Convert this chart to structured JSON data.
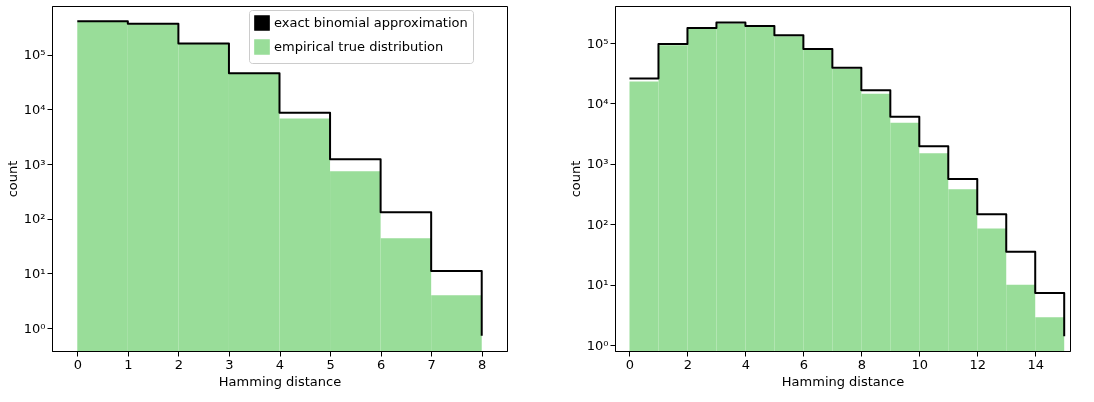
{
  "chart_data": [
    {
      "type": "histogram",
      "xlabel": "Hamming distance",
      "ylabel": "count",
      "log": "y",
      "legend": "top right",
      "grid": false,
      "bins": [
        0,
        1,
        2,
        3,
        4,
        5,
        6,
        7,
        8
      ],
      "xlim": [
        -0.5,
        8.5
      ],
      "xticks": [
        0,
        1,
        2,
        3,
        4,
        5,
        6,
        7,
        8
      ],
      "ylim": [
        0.38,
        780000
      ],
      "yticks": [
        {
          "value": 1,
          "label": "10⁰"
        },
        {
          "value": 10,
          "label": "10¹"
        },
        {
          "value": 100,
          "label": "10²"
        },
        {
          "value": 1000,
          "label": "10³"
        },
        {
          "value": 10000,
          "label": "10⁴"
        },
        {
          "value": 100000,
          "label": "10⁵"
        }
      ],
      "series": [
        {
          "name": "exact binomial approximation",
          "type": "step",
          "color": "#000000",
          "x": [
            0,
            1,
            2,
            3,
            4,
            5,
            6,
            7,
            8
          ],
          "values": [
            410000,
            370000,
            160000,
            46000,
            8700,
            1230,
            132,
            11.1,
            0.72
          ]
        },
        {
          "name": "empirical true distribution",
          "type": "histogram",
          "color": "#99dd99",
          "values": [
            400000,
            360000,
            160000,
            45000,
            6800,
            740,
            44,
            4.0
          ]
        }
      ]
    },
    {
      "type": "histogram",
      "xlabel": "Hamming distance",
      "ylabel": "count",
      "log": "y",
      "grid": false,
      "bins": [
        0,
        1,
        2,
        3,
        4,
        5,
        6,
        7,
        8,
        9,
        10,
        11,
        12,
        13,
        14,
        15
      ],
      "xlim": [
        -0.5,
        15.2
      ],
      "xticks": [
        0,
        2,
        4,
        6,
        8,
        10,
        12,
        14
      ],
      "ylim": [
        0.8,
        410000
      ],
      "yticks": [
        {
          "value": 1,
          "label": "10⁰"
        },
        {
          "value": 10,
          "label": "10¹"
        },
        {
          "value": 100,
          "label": "10²"
        },
        {
          "value": 1000,
          "label": "10³"
        },
        {
          "value": 10000,
          "label": "10⁴"
        },
        {
          "value": 100000,
          "label": "10⁵"
        }
      ],
      "series": [
        {
          "type": "step",
          "color": "#000000",
          "x": [
            0,
            1,
            2,
            3,
            4,
            5,
            6,
            7,
            8,
            9,
            10,
            11,
            12,
            13,
            14,
            15
          ],
          "values": [
            26000,
            96000,
            178000,
            218000,
            192000,
            135000,
            80000,
            39000,
            16500,
            6000,
            1950,
            560,
            147,
            35,
            7.3,
            1.4
          ]
        },
        {
          "type": "histogram",
          "color": "#99dd99",
          "values": [
            23000,
            92000,
            174000,
            210000,
            185000,
            130000,
            77000,
            37000,
            14500,
            4800,
            1500,
            380,
            85,
            10,
            2.9
          ]
        }
      ]
    }
  ]
}
